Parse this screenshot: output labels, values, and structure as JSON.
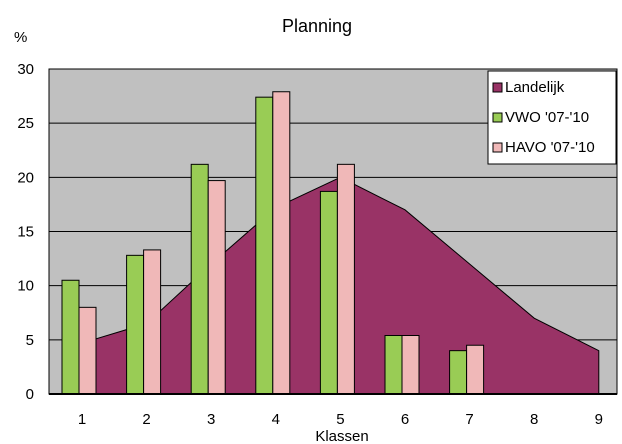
{
  "chart_data": {
    "type": "bar",
    "title": "Planning",
    "ylabel": "%",
    "xlabel": "Klassen",
    "categories": [
      "1",
      "2",
      "3",
      "4",
      "5",
      "6",
      "7",
      "8",
      "9"
    ],
    "ylim": [
      0,
      30
    ],
    "yticks": [
      0,
      5,
      10,
      15,
      20,
      25,
      30
    ],
    "grid": true,
    "legend_position": "top-right",
    "series": [
      {
        "name": "Landelijk",
        "kind": "area",
        "color": "#993366",
        "values": [
          4.7,
          6.5,
          12.0,
          17.2,
          20.0,
          17.0,
          12.0,
          7.0,
          4.0
        ]
      },
      {
        "name": "VWO '07-'10",
        "kind": "bar",
        "color": "#99cc55",
        "values": [
          10.5,
          12.8,
          21.2,
          27.4,
          18.7,
          5.4,
          4.0,
          null,
          null
        ]
      },
      {
        "name": "HAVO '07-'10",
        "kind": "bar",
        "color": "#f0b8b8",
        "values": [
          8.0,
          13.3,
          19.7,
          27.9,
          21.2,
          5.4,
          4.5,
          null,
          null
        ]
      }
    ],
    "plot_background": "#c0c0c0"
  }
}
